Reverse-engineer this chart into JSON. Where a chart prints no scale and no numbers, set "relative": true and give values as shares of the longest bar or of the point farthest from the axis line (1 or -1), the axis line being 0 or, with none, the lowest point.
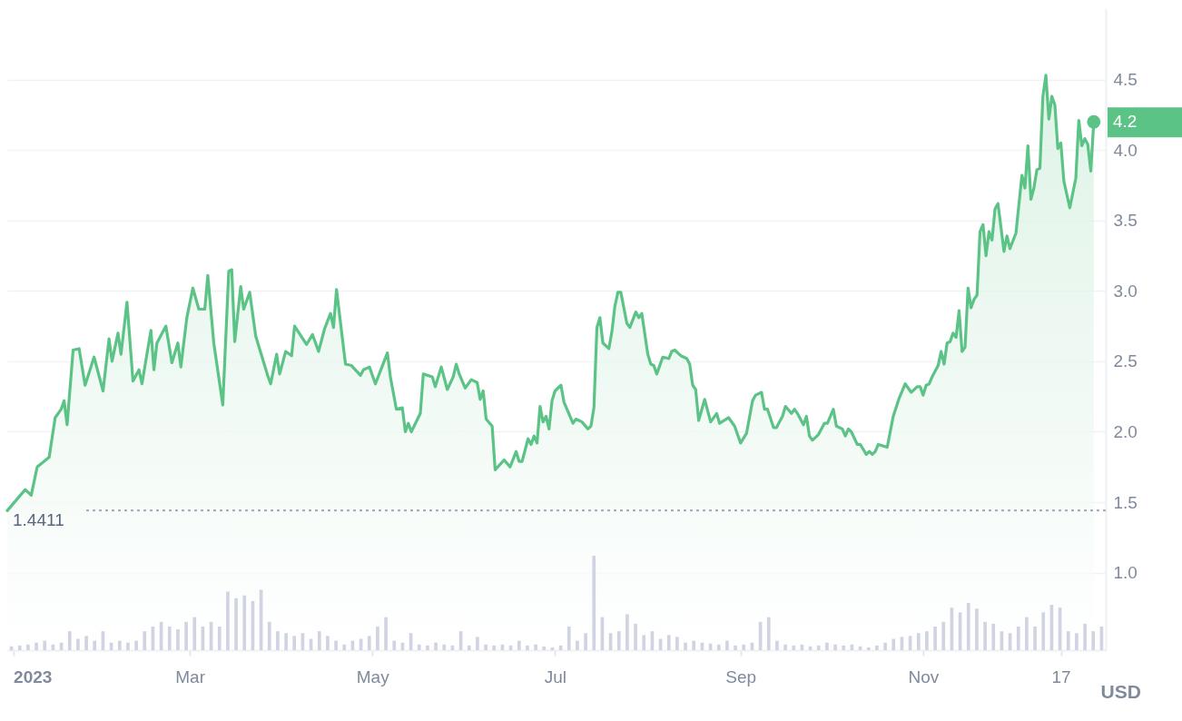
{
  "chart_data": [
    {
      "type": "area",
      "ylabel": "USD",
      "grid": "y",
      "xlim": [
        "2022-12-30",
        "2024-01-01"
      ],
      "xticks": [
        {
          "value": "2023-01-01",
          "label": "2023"
        },
        {
          "value": "2023-03-01",
          "label": "Mar"
        },
        {
          "value": "2023-05-01",
          "label": "May"
        },
        {
          "value": "2023-07-01",
          "label": "Jul"
        },
        {
          "value": "2023-09-01",
          "label": "Sep"
        },
        {
          "value": "2023-11-01",
          "label": "Nov"
        },
        {
          "value": "2023-12-17",
          "label": "17"
        }
      ],
      "ylim": [
        0.45,
        5.0
      ],
      "yticks": [
        {
          "value": 1,
          "label": "1.0"
        },
        {
          "value": 1.5,
          "label": "1.5"
        },
        {
          "value": 2,
          "label": "2.0"
        },
        {
          "value": 2.5,
          "label": "2.5"
        },
        {
          "value": 3,
          "label": "3.0"
        },
        {
          "value": 3.5,
          "label": "3.5"
        },
        {
          "value": 4,
          "label": "4.0"
        },
        {
          "value": 4.5,
          "label": "4.5"
        }
      ],
      "ref_lines": [
        {
          "axis": "y",
          "value": 1.4411,
          "label": "1.4411",
          "line_style": "dotted",
          "color": "#a3a9b8"
        }
      ],
      "annotations": [
        {
          "text": "4.2",
          "x": "2023-12-28",
          "y": 4.2
        }
      ],
      "x": [
        "2022-12-30",
        "2023-01-05",
        "2023-01-07",
        "2023-01-09",
        "2023-01-13",
        "2023-01-15",
        "2023-01-17",
        "2023-01-18",
        "2023-01-19",
        "2023-01-21",
        "2023-01-23",
        "2023-01-25",
        "2023-01-28",
        "2023-01-31",
        "2023-02-02",
        "2023-02-03",
        "2023-02-05",
        "2023-02-06",
        "2023-02-08",
        "2023-02-10",
        "2023-02-12",
        "2023-02-13",
        "2023-02-16",
        "2023-02-17",
        "2023-02-18",
        "2023-02-21",
        "2023-02-23",
        "2023-02-25",
        "2023-02-26",
        "2023-02-28",
        "2023-03-02",
        "2023-03-04",
        "2023-03-06",
        "2023-03-07",
        "2023-03-09",
        "2023-03-12",
        "2023-03-14",
        "2023-03-15",
        "2023-03-16",
        "2023-03-18",
        "2023-03-19",
        "2023-03-21",
        "2023-03-23",
        "2023-03-27",
        "2023-03-28",
        "2023-03-30",
        "2023-03-31",
        "2023-04-02",
        "2023-04-04",
        "2023-04-05",
        "2023-04-09",
        "2023-04-11",
        "2023-04-13",
        "2023-04-15",
        "2023-04-17",
        "2023-04-18",
        "2023-04-19",
        "2023-04-22",
        "2023-04-24",
        "2023-04-27",
        "2023-04-28",
        "2023-04-30",
        "2023-05-02",
        "2023-05-06",
        "2023-05-07",
        "2023-05-09",
        "2023-05-11",
        "2023-05-12",
        "2023-05-13",
        "2023-05-14",
        "2023-05-17",
        "2023-05-18",
        "2023-05-21",
        "2023-05-22",
        "2023-05-24",
        "2023-05-26",
        "2023-05-28",
        "2023-05-29",
        "2023-05-30",
        "2023-06-01",
        "2023-06-03",
        "2023-06-05",
        "2023-06-06",
        "2023-06-07",
        "2023-06-08",
        "2023-06-10",
        "2023-06-11",
        "2023-06-14",
        "2023-06-16",
        "2023-06-18",
        "2023-06-19",
        "2023-06-20",
        "2023-06-22",
        "2023-06-23",
        "2023-06-24",
        "2023-06-25",
        "2023-06-26",
        "2023-06-27",
        "2023-06-28",
        "2023-06-29",
        "2023-06-30",
        "2023-07-01",
        "2023-07-03",
        "2023-07-04",
        "2023-07-07",
        "2023-07-08",
        "2023-07-10",
        "2023-07-12",
        "2023-07-13",
        "2023-07-14",
        "2023-07-15",
        "2023-07-16",
        "2023-07-17",
        "2023-07-19",
        "2023-07-20",
        "2023-07-21",
        "2023-07-22",
        "2023-07-23",
        "2023-07-25",
        "2023-07-26",
        "2023-07-28",
        "2023-07-29",
        "2023-07-30",
        "2023-08-01",
        "2023-08-02",
        "2023-08-03",
        "2023-08-04",
        "2023-08-06",
        "2023-08-08",
        "2023-08-09",
        "2023-08-10",
        "2023-08-12",
        "2023-08-14",
        "2023-08-15",
        "2023-08-16",
        "2023-08-17",
        "2023-08-18",
        "2023-08-20",
        "2023-08-22",
        "2023-08-24",
        "2023-08-25",
        "2023-08-28",
        "2023-08-30",
        "2023-09-01",
        "2023-09-03",
        "2023-09-05",
        "2023-09-06",
        "2023-09-08",
        "2023-09-09",
        "2023-09-10",
        "2023-09-12",
        "2023-09-13",
        "2023-09-15",
        "2023-09-16",
        "2023-09-18",
        "2023-09-19",
        "2023-09-20",
        "2023-09-22",
        "2023-09-23",
        "2023-09-24",
        "2023-09-25",
        "2023-09-27",
        "2023-09-29",
        "2023-09-30",
        "2023-10-02",
        "2023-10-03",
        "2023-10-05",
        "2023-10-06",
        "2023-10-07",
        "2023-10-08",
        "2023-10-10",
        "2023-10-11",
        "2023-10-13",
        "2023-10-14",
        "2023-10-15",
        "2023-10-16",
        "2023-10-17",
        "2023-10-20",
        "2023-10-22",
        "2023-10-24",
        "2023-10-26",
        "2023-10-28",
        "2023-10-30",
        "2023-10-31",
        "2023-11-01",
        "2023-11-02",
        "2023-11-03",
        "2023-11-04",
        "2023-11-06",
        "2023-11-07",
        "2023-11-08",
        "2023-11-09",
        "2023-11-10",
        "2023-11-11",
        "2023-11-12",
        "2023-11-13",
        "2023-11-14",
        "2023-11-15",
        "2023-11-16",
        "2023-11-17",
        "2023-11-18",
        "2023-11-19",
        "2023-11-20",
        "2023-11-21",
        "2023-11-22",
        "2023-11-23",
        "2023-11-24",
        "2023-11-25",
        "2023-11-26",
        "2023-11-28",
        "2023-11-29",
        "2023-11-30",
        "2023-12-02",
        "2023-12-04",
        "2023-12-05",
        "2023-12-06",
        "2023-12-07",
        "2023-12-08",
        "2023-12-09",
        "2023-12-10",
        "2023-12-11",
        "2023-12-12",
        "2023-12-13",
        "2023-12-14",
        "2023-12-15",
        "2023-12-16",
        "2023-12-17",
        "2023-12-18",
        "2023-12-20",
        "2023-12-22",
        "2023-12-23",
        "2023-12-24",
        "2023-12-25",
        "2023-12-26",
        "2023-12-27",
        "2023-12-28"
      ],
      "series": [
        {
          "color": "#5bc386",
          "values": [
            1.44,
            1.59,
            1.55,
            1.75,
            1.82,
            2.1,
            2.16,
            2.22,
            2.05,
            2.58,
            2.59,
            2.33,
            2.53,
            2.29,
            2.66,
            2.5,
            2.7,
            2.55,
            2.92,
            2.36,
            2.44,
            2.34,
            2.72,
            2.44,
            2.63,
            2.75,
            2.49,
            2.63,
            2.46,
            2.81,
            3.02,
            2.87,
            2.87,
            3.11,
            2.63,
            2.19,
            3.14,
            3.15,
            2.64,
            3.03,
            2.87,
            2.99,
            2.68,
            2.4,
            2.34,
            2.55,
            2.41,
            2.57,
            2.54,
            2.75,
            2.62,
            2.69,
            2.57,
            2.73,
            2.84,
            2.74,
            3.01,
            2.48,
            2.47,
            2.4,
            2.44,
            2.46,
            2.34,
            2.56,
            2.39,
            2.16,
            2.17,
            2.0,
            2.06,
            2.0,
            2.13,
            2.41,
            2.39,
            2.32,
            2.46,
            2.3,
            2.39,
            2.48,
            2.41,
            2.31,
            2.37,
            2.35,
            2.23,
            2.29,
            2.09,
            2.04,
            1.73,
            1.8,
            1.75,
            1.86,
            1.79,
            1.79,
            1.95,
            1.91,
            1.97,
            1.92,
            2.18,
            2.07,
            2.11,
            2.02,
            2.22,
            2.29,
            2.33,
            2.21,
            2.06,
            2.09,
            2.07,
            2.02,
            2.04,
            2.17,
            2.74,
            2.81,
            2.63,
            2.59,
            2.71,
            2.89,
            2.99,
            2.99,
            2.77,
            2.74,
            2.85,
            2.81,
            2.84,
            2.55,
            2.48,
            2.47,
            2.41,
            2.53,
            2.52,
            2.57,
            2.58,
            2.54,
            2.52,
            2.48,
            2.33,
            2.3,
            2.08,
            2.23,
            2.07,
            2.13,
            2.06,
            2.1,
            2.04,
            1.92,
            1.99,
            2.22,
            2.26,
            2.28,
            2.16,
            2.16,
            2.03,
            2.03,
            2.11,
            2.18,
            2.13,
            2.16,
            2.13,
            2.05,
            2.11,
            1.97,
            1.94,
            1.98,
            2.06,
            2.06,
            2.16,
            2.04,
            2.02,
            1.97,
            2.02,
            2.0,
            1.91,
            1.91,
            1.84,
            1.86,
            1.84,
            1.86,
            1.91,
            1.89,
            2.11,
            2.24,
            2.34,
            2.28,
            2.32,
            2.32,
            2.26,
            2.33,
            2.34,
            2.39,
            2.47,
            2.57,
            2.48,
            2.63,
            2.64,
            2.7,
            2.67,
            2.86,
            2.57,
            2.6,
            3.02,
            2.88,
            2.94,
            2.97,
            3.42,
            3.47,
            3.25,
            3.42,
            3.36,
            3.58,
            3.62,
            3.28,
            3.39,
            3.3,
            3.41,
            3.82,
            3.73,
            4.03,
            3.65,
            3.73,
            3.86,
            3.87,
            4.38,
            4.53,
            4.22,
            4.38,
            4.32,
            4.01,
            4.05,
            3.78,
            3.59,
            3.8,
            4.21,
            4.03,
            4.08,
            4.04,
            3.85,
            4.2
          ]
        }
      ]
    },
    {
      "type": "bar",
      "relative": true,
      "color": "#cfd3e2",
      "categories": [
        null,
        null,
        null,
        null,
        null,
        null,
        null,
        null,
        null,
        null,
        null,
        null,
        null,
        null,
        null,
        null,
        null,
        null,
        null,
        null,
        null,
        null,
        null,
        null,
        null,
        null,
        null,
        null,
        null,
        null,
        null,
        null,
        null,
        null,
        null,
        null,
        null,
        null,
        null,
        null,
        null,
        null,
        null,
        null,
        null,
        null,
        null,
        null,
        null,
        null,
        null,
        null,
        null,
        null,
        null,
        null,
        null,
        null,
        null,
        null,
        null,
        null,
        null,
        null,
        null,
        null,
        null,
        null,
        null,
        null,
        null,
        null,
        null,
        null,
        null,
        null,
        null,
        null,
        null,
        null,
        null,
        null,
        null,
        null,
        null,
        null,
        null,
        null,
        null,
        null,
        null,
        null,
        null,
        null,
        null,
        null,
        null,
        null,
        null,
        null,
        null,
        null,
        null,
        null,
        null,
        null,
        null,
        null,
        null,
        null,
        null,
        null,
        null,
        null,
        null,
        null,
        null,
        null,
        null,
        null,
        null,
        null,
        null,
        null,
        null,
        null,
        null,
        null,
        null,
        null,
        null,
        null
      ],
      "values": [
        0.04,
        0.05,
        0.06,
        0.08,
        0.1,
        0.06,
        0.08,
        0.2,
        0.12,
        0.15,
        0.1,
        0.2,
        0.08,
        0.1,
        0.08,
        0.1,
        0.2,
        0.25,
        0.3,
        0.25,
        0.22,
        0.3,
        0.35,
        0.25,
        0.3,
        0.25,
        0.62,
        0.55,
        0.58,
        0.52,
        0.64,
        0.3,
        0.2,
        0.18,
        0.15,
        0.18,
        0.12,
        0.2,
        0.15,
        0.1,
        0.06,
        0.1,
        0.12,
        0.15,
        0.25,
        0.35,
        0.1,
        0.08,
        0.18,
        0.06,
        0.05,
        0.08,
        0.06,
        0.05,
        0.2,
        0.05,
        0.14,
        0.06,
        0.05,
        0.06,
        0.05,
        0.1,
        0.05,
        0.06,
        0.04,
        0.03,
        0.05,
        0.25,
        0.1,
        0.18,
        1.0,
        0.35,
        0.18,
        0.2,
        0.38,
        0.28,
        0.16,
        0.2,
        0.12,
        0.16,
        0.14,
        0.08,
        0.1,
        0.08,
        0.07,
        0.06,
        0.1,
        0.05,
        0.06,
        0.08,
        0.3,
        0.35,
        0.1,
        0.06,
        0.05,
        0.06,
        0.04,
        0.05,
        0.08,
        0.06,
        0.05,
        0.06,
        0.04,
        0.03,
        0.05,
        0.08,
        0.12,
        0.14,
        0.15,
        0.18,
        0.2,
        0.25,
        0.3,
        0.45,
        0.4,
        0.5,
        0.44,
        0.3,
        0.28,
        0.2,
        0.18,
        0.25,
        0.35,
        0.25,
        0.4,
        0.48,
        0.45,
        0.2,
        0.18,
        0.28,
        0.2,
        0.25
      ]
    }
  ]
}
